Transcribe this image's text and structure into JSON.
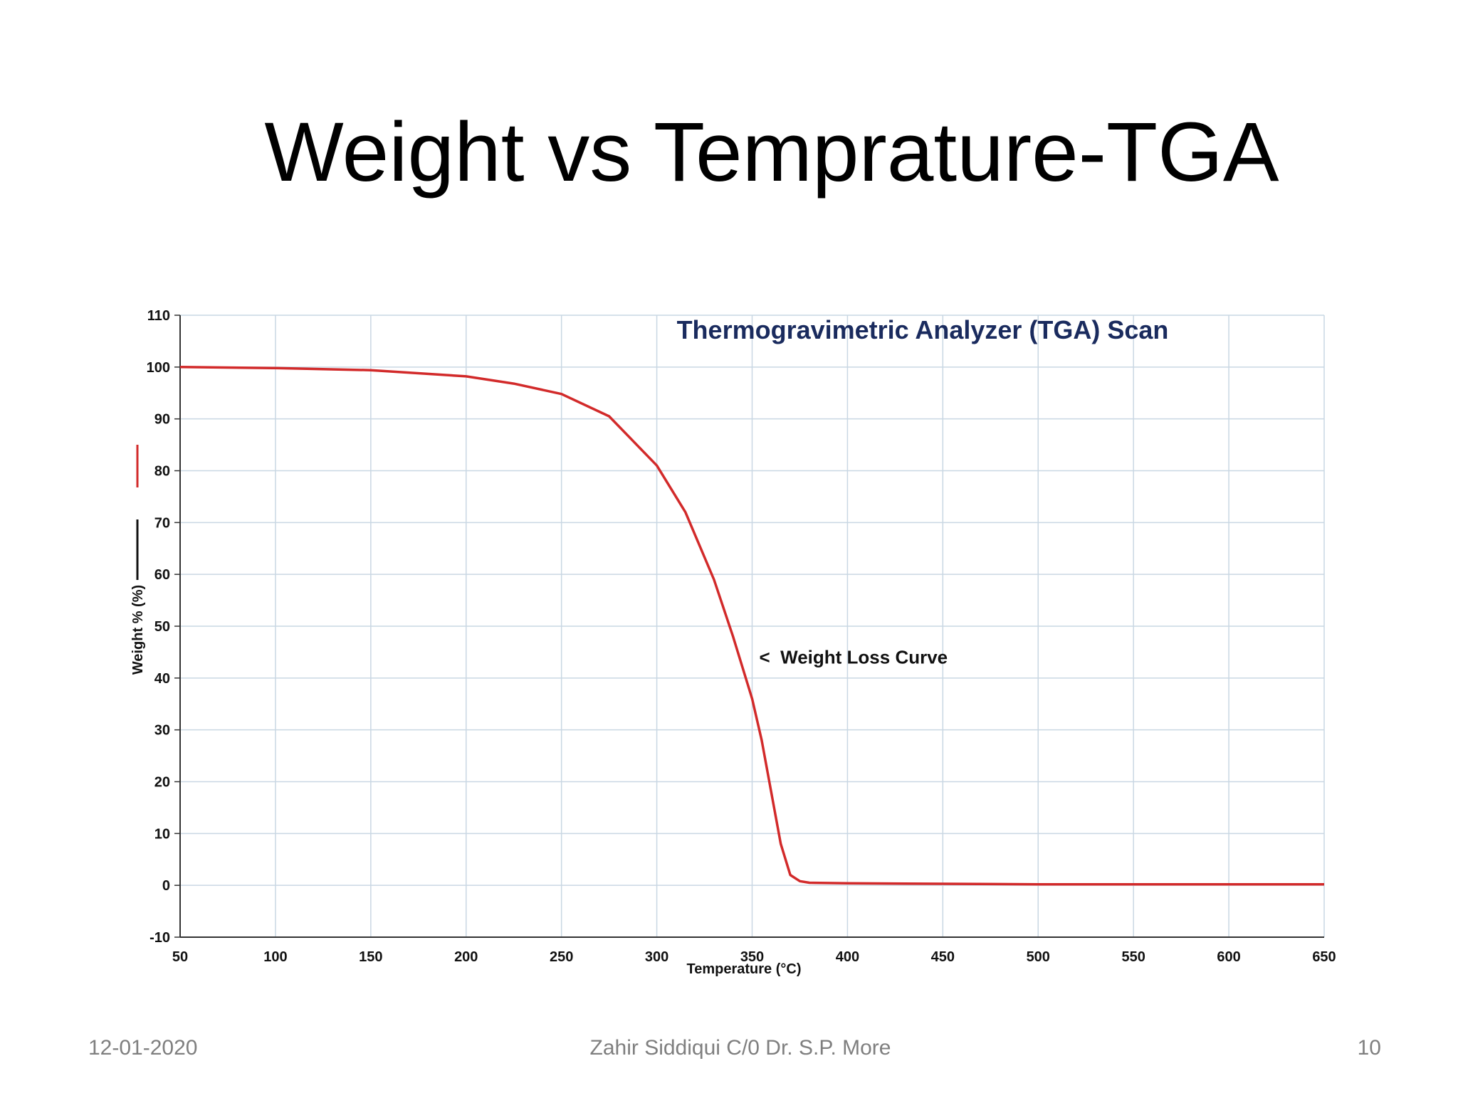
{
  "slide": {
    "title": "Weight vs Temprature-TGA"
  },
  "footer": {
    "date": "12-01-2020",
    "author": "Zahir Siddiqui C/0 Dr. S.P. More",
    "page_number": "10"
  },
  "colors": {
    "curve": "#d22a2a",
    "chart_title": "#1a2b5e",
    "grid": "#c9d7e3",
    "axis": "#333333",
    "footer_text": "#7f7f7f"
  },
  "chart_data": {
    "type": "line",
    "title": "Thermogravimetric Analyzer (TGA) Scan",
    "xlabel": "Temperature (°C)",
    "ylabel": "Weight % (%)",
    "xlim": [
      50,
      650
    ],
    "ylim": [
      -10,
      110
    ],
    "x_ticks": [
      "50",
      "100",
      "150",
      "200",
      "250",
      "300",
      "350",
      "400",
      "450",
      "500",
      "550",
      "600",
      "650"
    ],
    "y_ticks": [
      "110",
      "100",
      "90",
      "80",
      "70",
      "60",
      "50",
      "40",
      "30",
      "20",
      "10",
      "0",
      "-10"
    ],
    "grid": true,
    "annotation": {
      "text": "<  Weight Loss Curve",
      "x": 350,
      "y": 44
    },
    "series": [
      {
        "x": [
          50,
          100,
          150,
          200,
          225,
          250,
          275,
          300,
          315,
          330,
          340,
          350,
          355,
          360,
          365,
          370,
          375,
          380,
          400,
          450,
          500,
          550,
          600,
          650
        ],
        "values": [
          100,
          99.8,
          99.4,
          98.2,
          96.8,
          94.8,
          90.5,
          81,
          72,
          59,
          48,
          36,
          28,
          18,
          8,
          2,
          0.8,
          0.5,
          0.4,
          0.3,
          0.2,
          0.2,
          0.2,
          0.2
        ],
        "color": "#d22a2a"
      }
    ]
  }
}
